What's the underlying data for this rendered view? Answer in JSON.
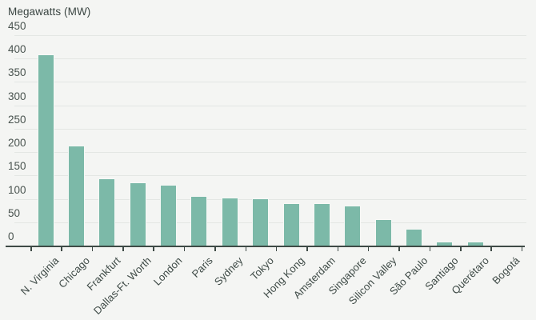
{
  "title": "Megawatts (MW)",
  "colors": {
    "bar_fill": "#7cb9a8",
    "bar_stroke": "#f6f8f6",
    "background": "#f4f5f3",
    "gridline": "#e3e6e3",
    "axis": "#3e4a46",
    "text": "#3e4a46"
  },
  "chart_data": {
    "type": "bar",
    "title": "Megawatts (MW)",
    "xlabel": "",
    "ylabel": "Megawatts (MW)",
    "categories": [
      "N. Virginia",
      "Chicago",
      "Frankfurt",
      "Dallas-Ft. Worth",
      "London",
      "Paris",
      "Sydney",
      "Tokyo",
      "Hong Kong",
      "Amsterdam",
      "Singapore",
      "Silicon Valley",
      "São Paulo",
      "Santiago",
      "Querétaro",
      "Bogotá"
    ],
    "values": [
      410,
      215,
      145,
      137,
      131,
      107,
      105,
      103,
      93,
      92,
      88,
      58,
      37,
      11,
      10,
      4
    ],
    "ylim": [
      0,
      450
    ],
    "yticks": [
      0,
      50,
      100,
      150,
      200,
      250,
      300,
      350,
      400,
      450
    ],
    "grid": true,
    "legend": "none",
    "x_label_rotation_deg": -45
  }
}
